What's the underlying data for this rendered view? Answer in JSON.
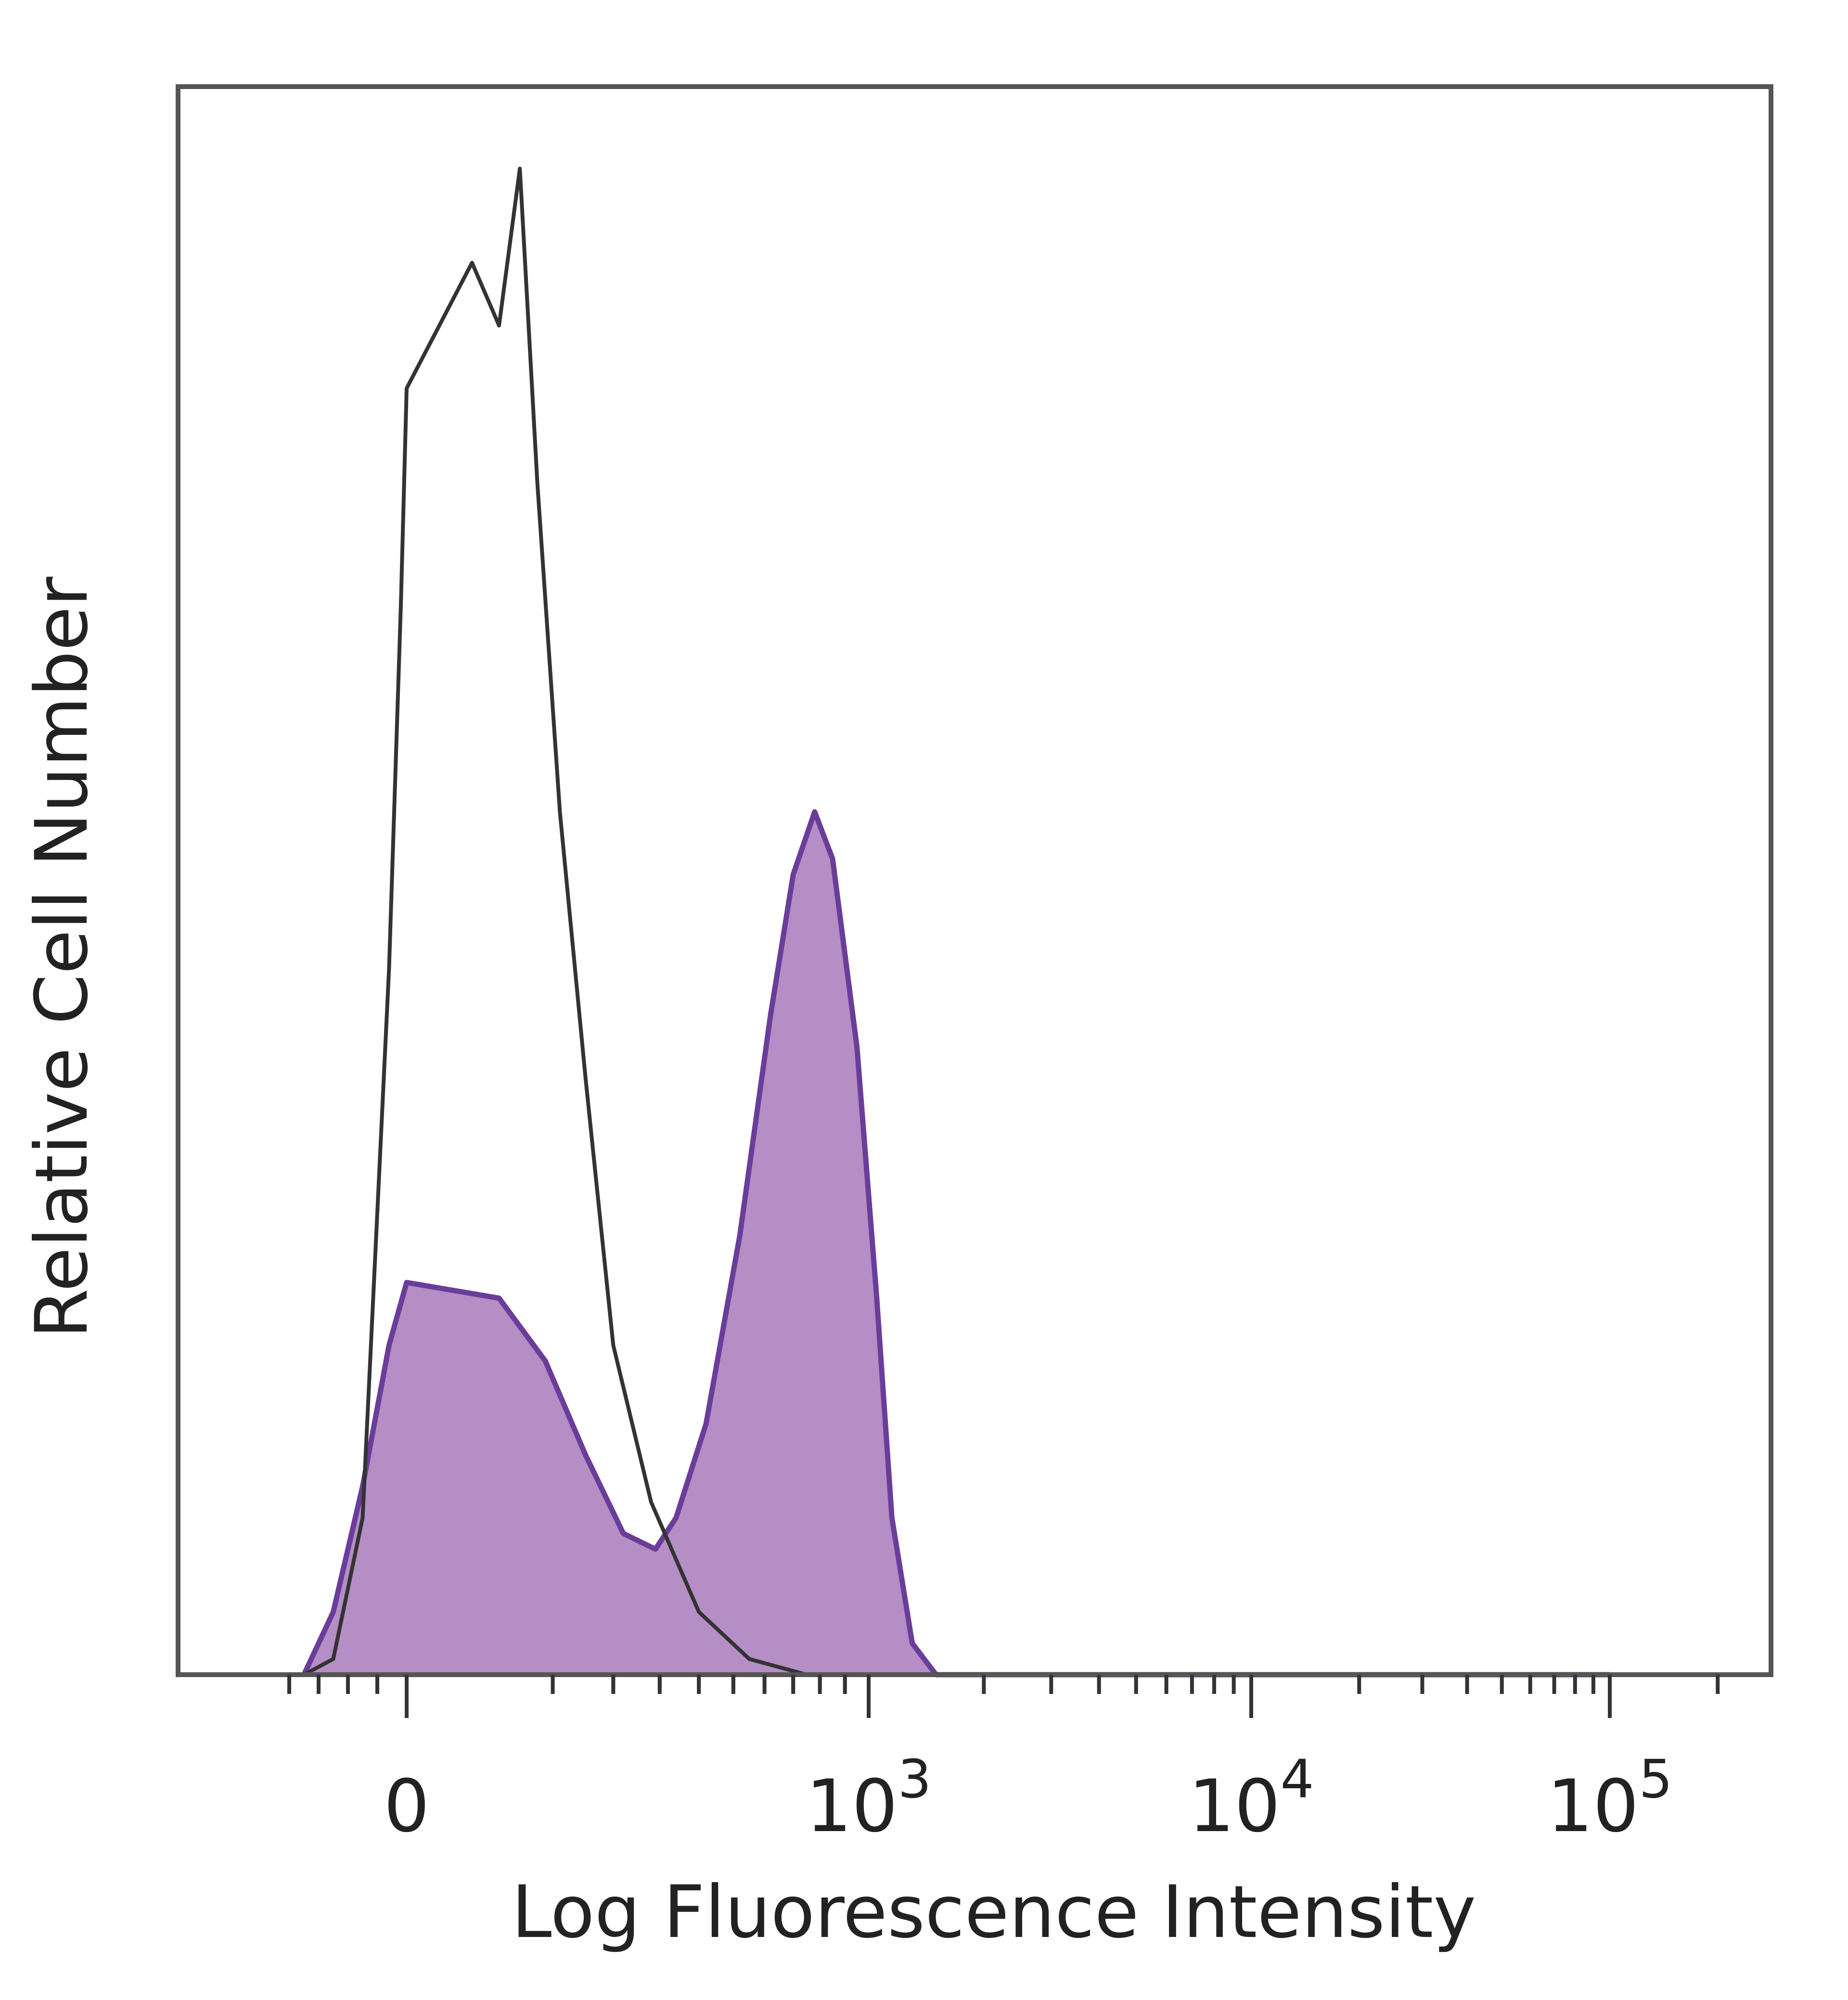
{
  "chart_data": {
    "type": "area",
    "title": "",
    "xlabel": "Log Fluorescence Intensity",
    "ylabel": "Relative Cell Number",
    "xscale": "biexponential",
    "x_ticks": [
      {
        "label": "0",
        "base": "0",
        "exp": ""
      },
      {
        "label": "10^3",
        "base": "10",
        "exp": "3"
      },
      {
        "label": "10^4",
        "base": "10",
        "exp": "4"
      },
      {
        "label": "10^5",
        "base": "10",
        "exp": "5"
      }
    ],
    "ylim": [
      0,
      100
    ],
    "grid": false,
    "legend": "none",
    "series": [
      {
        "style": "outline",
        "color": "#333333",
        "fill": "none",
        "points": [
          [
            -350,
            0
          ],
          [
            -250,
            1
          ],
          [
            -150,
            10
          ],
          [
            -60,
            45
          ],
          [
            -20,
            68
          ],
          [
            0,
            82
          ],
          [
            20,
            90
          ],
          [
            40,
            86
          ],
          [
            60,
            96
          ],
          [
            80,
            76
          ],
          [
            110,
            55
          ],
          [
            150,
            38
          ],
          [
            200,
            21
          ],
          [
            280,
            11
          ],
          [
            400,
            4
          ],
          [
            550,
            1
          ],
          [
            750,
            0
          ],
          [
            100000,
            0
          ]
        ]
      },
      {
        "style": "filled",
        "color": "#6a3d9a",
        "fill": "#b48ec4",
        "points": [
          [
            -350,
            0
          ],
          [
            -250,
            4
          ],
          [
            -150,
            12
          ],
          [
            -60,
            21
          ],
          [
            0,
            25
          ],
          [
            40,
            24
          ],
          [
            90,
            20
          ],
          [
            150,
            14
          ],
          [
            220,
            9
          ],
          [
            290,
            8
          ],
          [
            340,
            10
          ],
          [
            420,
            16
          ],
          [
            520,
            28
          ],
          [
            620,
            42
          ],
          [
            700,
            51
          ],
          [
            780,
            55
          ],
          [
            850,
            52
          ],
          [
            950,
            40
          ],
          [
            1050,
            24
          ],
          [
            1150,
            10
          ],
          [
            1300,
            2
          ],
          [
            1500,
            0
          ],
          [
            100000,
            0
          ]
        ]
      }
    ]
  }
}
